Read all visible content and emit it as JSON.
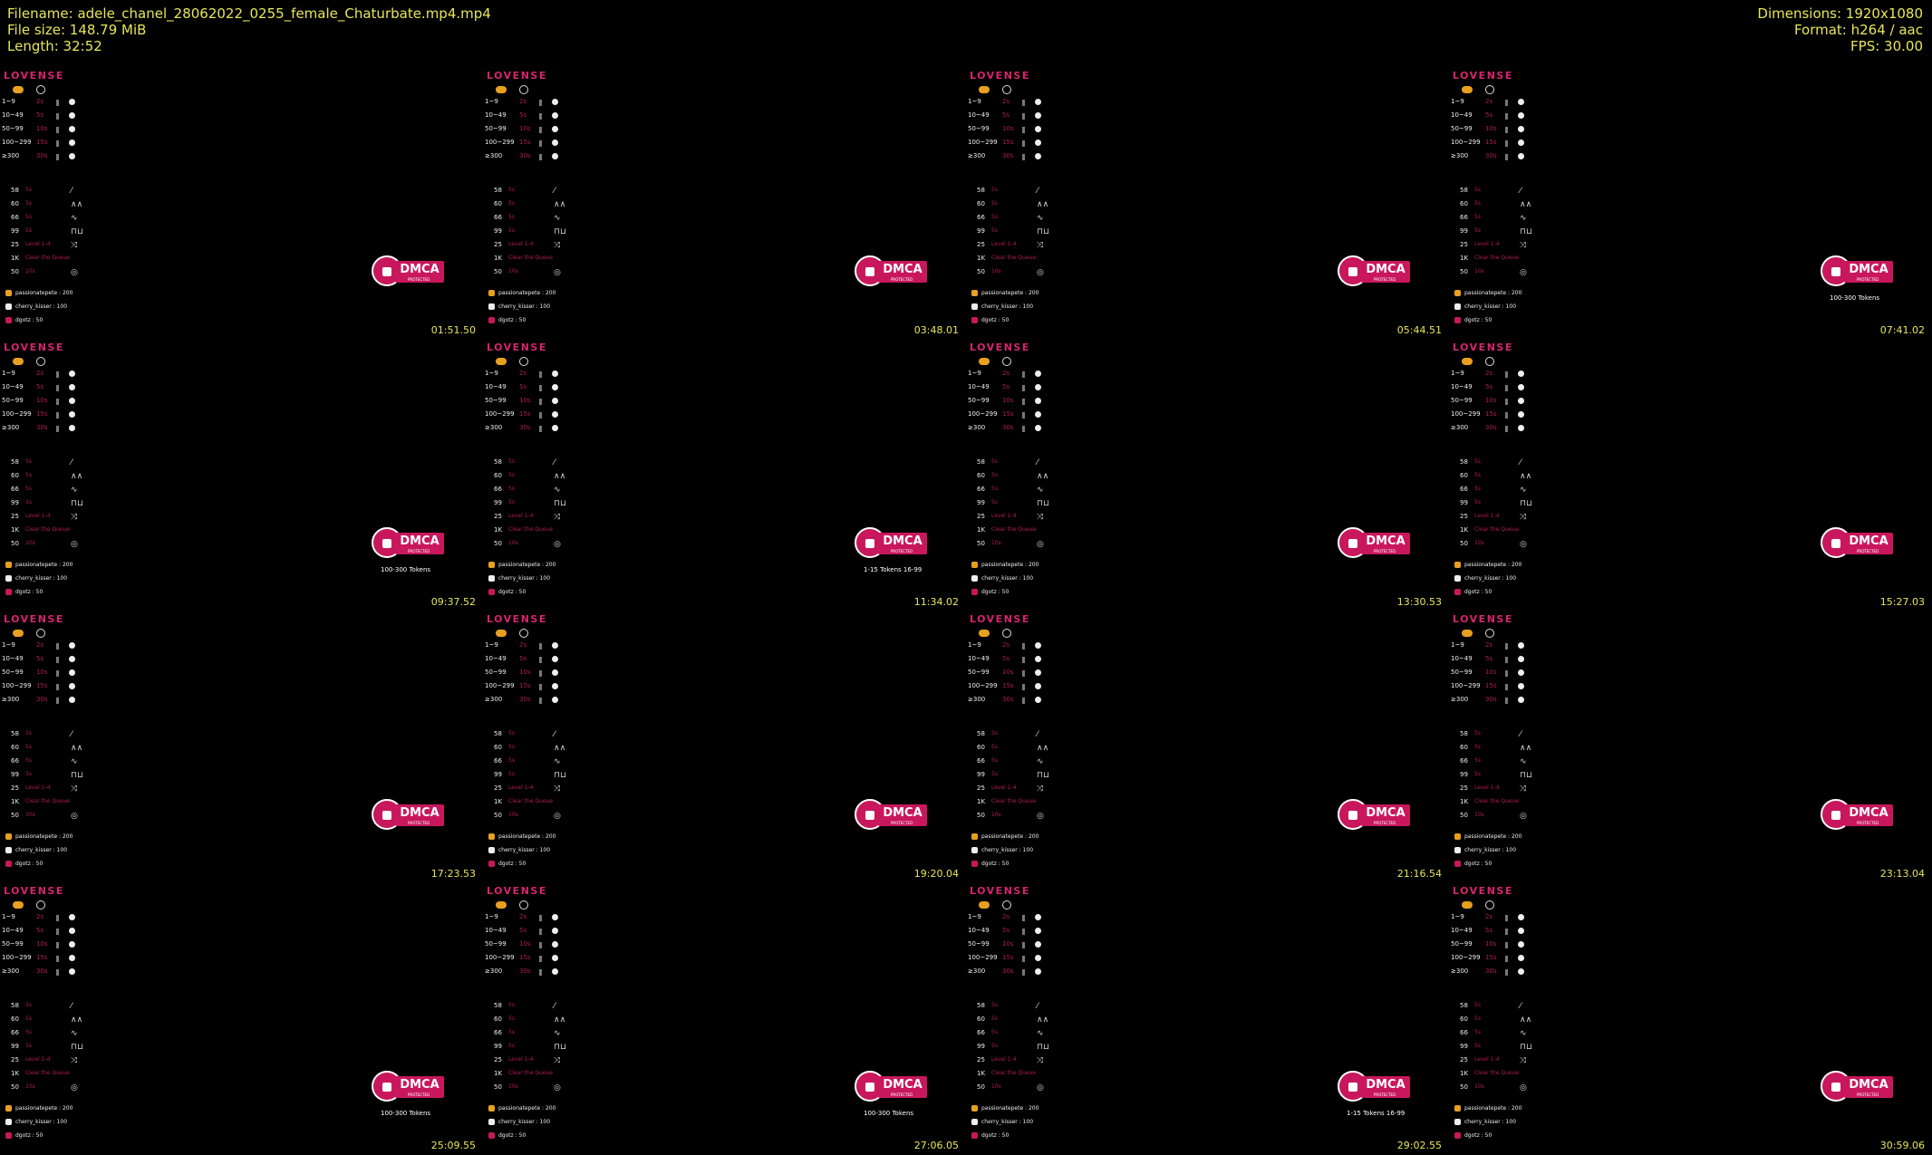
{
  "header": {
    "filename": "Filename: adele_chanel_28062022_0255_female_Chaturbate.mp4.mp4",
    "filesize": "File size: 148.79 MiB",
    "length": "Length: 32:52",
    "dimensions": "Dimensions: 1920x1080",
    "format": "Format: h264 / aac",
    "fps": "FPS: 30.00"
  },
  "panel": {
    "logo": "LOVENSE",
    "price_rows": [
      {
        "label": "1~9",
        "mult": "2s"
      },
      {
        "label": "10~49",
        "mult": "5s"
      },
      {
        "label": "50~99",
        "mult": "10s"
      },
      {
        "label": "100~299",
        "mult": "15s"
      },
      {
        "label": "≥300",
        "mult": "30s"
      }
    ],
    "special_rows": [
      {
        "label": "58",
        "mult": "5s",
        "wave": "⁄"
      },
      {
        "label": "60",
        "mult": "5s",
        "wave": "∧∧"
      },
      {
        "label": "66",
        "mult": "5s",
        "wave": "∿"
      },
      {
        "label": "99",
        "mult": "5s",
        "wave": "⊓⊔"
      },
      {
        "label": "25",
        "mult": "Level 1-4",
        "wave": "⤨"
      },
      {
        "label": "1K",
        "mult": "Clear the Queue",
        "wave": ""
      },
      {
        "label": "50",
        "mult": "10s",
        "wave": "◎"
      }
    ],
    "tippers": [
      {
        "name": "passionatepete : 200",
        "color": "#e8a020"
      },
      {
        "name": "cherry_kisser : 100",
        "color": "#eeeeee"
      },
      {
        "name": "dgotz : 50",
        "color": "#c8175d"
      }
    ],
    "dmca_text": "DMCA",
    "dmca_sub": "PROTECTED"
  },
  "thumbnails": [
    {
      "time": "01:51.50",
      "overlay": ""
    },
    {
      "time": "03:48.01",
      "overlay": ""
    },
    {
      "time": "05:44.51",
      "overlay": ""
    },
    {
      "time": "07:41.02",
      "overlay": "100-300 Tokens"
    },
    {
      "time": "09:37.52",
      "overlay": "100-300 Tokens"
    },
    {
      "time": "11:34.02",
      "overlay": "1-15 Tokens   16-99"
    },
    {
      "time": "13:30.53",
      "overlay": ""
    },
    {
      "time": "15:27.03",
      "overlay": ""
    },
    {
      "time": "17:23.53",
      "overlay": ""
    },
    {
      "time": "19:20.04",
      "overlay": ""
    },
    {
      "time": "21:16.54",
      "overlay": ""
    },
    {
      "time": "23:13.04",
      "overlay": ""
    },
    {
      "time": "25:09.55",
      "overlay": "100-300 Tokens"
    },
    {
      "time": "27:06.05",
      "overlay": "100-300 Tokens"
    },
    {
      "time": "29:02.55",
      "overlay": "1-15 Tokens   16-99"
    },
    {
      "time": "30:59.06",
      "overlay": ""
    }
  ],
  "colors": {
    "accent": "#d6246e",
    "timestamp": "#e6e65a"
  }
}
